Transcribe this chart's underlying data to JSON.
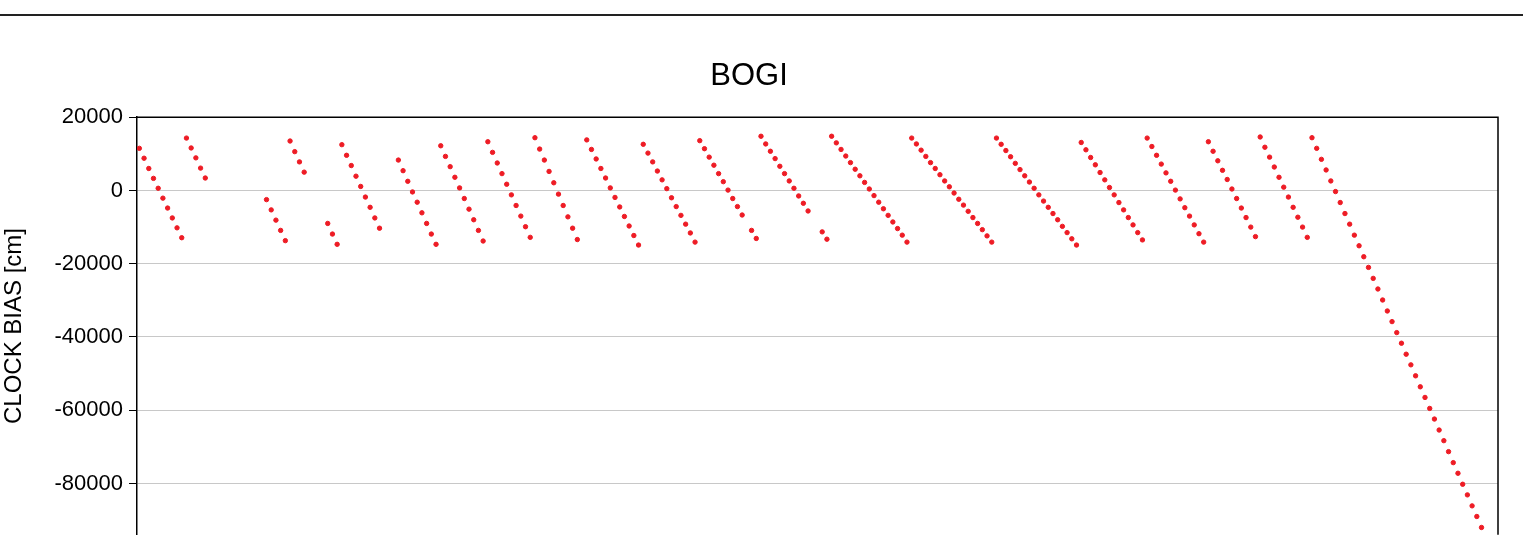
{
  "chart_data": {
    "type": "scatter",
    "title": "BOGI",
    "ylabel": "CLOCK BIAS [cm]",
    "categories": [
      null,
      null,
      null,
      null,
      null,
      null,
      null,
      null,
      null,
      null,
      null,
      null,
      null,
      null,
      null,
      null,
      null,
      null,
      null,
      null,
      null,
      null,
      null,
      null,
      null,
      null,
      null,
      null,
      null,
      null,
      null,
      null,
      null,
      null,
      null,
      null,
      null,
      null,
      null,
      null,
      null,
      null,
      null,
      null,
      null,
      null,
      null,
      null,
      null,
      null,
      null,
      null,
      null,
      null,
      null,
      null,
      null,
      null,
      null,
      null,
      null,
      null,
      null,
      null,
      null,
      null,
      null,
      null,
      null,
      null,
      null,
      null,
      null,
      null,
      null,
      null,
      null,
      null,
      null,
      null,
      null,
      null,
      null,
      null,
      null,
      null,
      null,
      null,
      null,
      null,
      null,
      null,
      null,
      null,
      null,
      null,
      null,
      null,
      null,
      null,
      null,
      null,
      null,
      null,
      null,
      null,
      null,
      null,
      null,
      null,
      null,
      null,
      null,
      null,
      null,
      null,
      null,
      null,
      null,
      null,
      null,
      null,
      null,
      null,
      null,
      null,
      null,
      null,
      null,
      null,
      null,
      null,
      null,
      null,
      null,
      null,
      null,
      null,
      null,
      null,
      null,
      null,
      null,
      null,
      null,
      null,
      null,
      null,
      null,
      null,
      null,
      null,
      null,
      null,
      null,
      null,
      null,
      null,
      null,
      null,
      null,
      null,
      null,
      null,
      null,
      null,
      null,
      null,
      null,
      null,
      null,
      null,
      null,
      null,
      null,
      null,
      null,
      null,
      null,
      null,
      null,
      null,
      null,
      null,
      null,
      null,
      null,
      null,
      null,
      null,
      null,
      null,
      null,
      null,
      null,
      null,
      null,
      null,
      null,
      null,
      null,
      null,
      null,
      null,
      null,
      null,
      null,
      null,
      null,
      null,
      null,
      null,
      null,
      null,
      null,
      null,
      null,
      null,
      null,
      null,
      null,
      null,
      null,
      null,
      null,
      null,
      null,
      null,
      null,
      null,
      null,
      null,
      null,
      null,
      null,
      null,
      null,
      null,
      null,
      null,
      null,
      null,
      null,
      null,
      null,
      null,
      null,
      null,
      null,
      null,
      null,
      null,
      null,
      null,
      null,
      null,
      null,
      null,
      null,
      null,
      null,
      null,
      null,
      null,
      null,
      null,
      null,
      null,
      null,
      null,
      null,
      null,
      null,
      null,
      null,
      null,
      null,
      null,
      null,
      null,
      null,
      null,
      null,
      null,
      null,
      null,
      null,
      null,
      null
    ],
    "series": [
      {
        "color": "#ee1c25",
        "values": [
          11500,
          8800,
          6000,
          3300,
          600,
          -2100,
          -4800,
          -7500,
          -10200,
          -12900,
          14300,
          11600,
          8900,
          6100,
          3400,
          null,
          null,
          null,
          null,
          null,
          null,
          null,
          null,
          null,
          null,
          null,
          null,
          -2500,
          -5300,
          -8100,
          -10900,
          -13700,
          13500,
          10600,
          7800,
          5000,
          null,
          null,
          null,
          null,
          -9000,
          -11900,
          -14700,
          12500,
          9600,
          6800,
          3900,
          1100,
          -1800,
          -4600,
          -7500,
          -10300,
          null,
          null,
          null,
          8300,
          5400,
          2500,
          -400,
          -3200,
          -6100,
          -9000,
          -11900,
          -14700,
          12200,
          9300,
          6500,
          3600,
          700,
          -2200,
          -5100,
          -8000,
          -10900,
          -13800,
          13300,
          10400,
          7500,
          4600,
          1700,
          -1200,
          -4100,
          -7000,
          -9900,
          -12800,
          14400,
          11300,
          8300,
          5200,
          2100,
          -1000,
          -4100,
          -7200,
          -10300,
          -13400,
          null,
          13800,
          11200,
          8600,
          6000,
          3400,
          700,
          -1900,
          -4500,
          -7100,
          -9700,
          -12300,
          -14900,
          12600,
          10200,
          7800,
          5300,
          2900,
          500,
          -2000,
          -4400,
          -6800,
          -9200,
          -11600,
          -14100,
          13600,
          11400,
          9100,
          6900,
          4600,
          2400,
          100,
          -2200,
          -4400,
          -6700,
          null,
          -10900,
          -13100,
          14800,
          12700,
          10700,
          8700,
          6600,
          4600,
          2600,
          600,
          -1500,
          -3500,
          -5600,
          null,
          null,
          -11300,
          -13300,
          14800,
          13000,
          11200,
          9400,
          7600,
          5800,
          4000,
          2200,
          400,
          -1400,
          -3200,
          -5000,
          -6800,
          -8600,
          -10400,
          -12200,
          -14100,
          14300,
          12700,
          11000,
          9300,
          7600,
          6000,
          4300,
          2600,
          1000,
          -700,
          -2400,
          -4000,
          -5700,
          -7400,
          -9000,
          -10700,
          -12400,
          -14100,
          14300,
          12600,
          10900,
          9200,
          7400,
          5700,
          4000,
          2300,
          600,
          -1200,
          -2900,
          -4600,
          -6300,
          -8000,
          -9800,
          -11500,
          -13200,
          -14900,
          13100,
          11100,
          9000,
          7000,
          4900,
          2900,
          800,
          -1200,
          -3300,
          -5300,
          -7400,
          -9400,
          -11500,
          -13500,
          14300,
          12000,
          9600,
          7200,
          4800,
          2500,
          100,
          -2300,
          -4700,
          -7000,
          -9400,
          -11800,
          -14100,
          13300,
          10700,
          8100,
          5500,
          3000,
          400,
          -2200,
          -4800,
          -7400,
          -10000,
          -12600,
          14600,
          11800,
          9100,
          6400,
          3600,
          900,
          -1800,
          -4600,
          -7300,
          -10000,
          -12800,
          14400,
          11500,
          8500,
          5600,
          2600,
          -300,
          -3300,
          -6300,
          -9200,
          -12200,
          -15100,
          -18100,
          -21000,
          -24000,
          -26900,
          -29900,
          -32900,
          -35800,
          -38800,
          -41700,
          -44700,
          -47600,
          -50600,
          -53600,
          -56500,
          -59500,
          -62400,
          -65400,
          -68300,
          -71300,
          -74300,
          -77200,
          -80200,
          -83100,
          -86100,
          -89000,
          -92000,
          null,
          null,
          null
        ]
      }
    ],
    "ylim": [
      -94000,
      20000
    ],
    "yticks": [
      20000,
      0,
      -20000,
      -40000,
      -60000,
      -80000
    ],
    "grid": "y",
    "marker": "circle",
    "tick_labels": "y"
  }
}
